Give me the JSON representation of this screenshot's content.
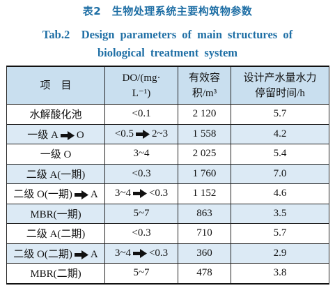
{
  "caption": {
    "cn": "表2　生物处理系统主要构筑物参数",
    "en_line1": "Tab.2　Design parameters of main structures of",
    "en_line2": "biological treatment system"
  },
  "headers": {
    "item": "项　目",
    "do_line1": "DO/(mg·",
    "do_line2": "L⁻¹)",
    "vol_line1": "有效容",
    "vol_line2": "积/m³",
    "hrt_line1": "设计产水量水力",
    "hrt_line2": "停留时间/h"
  },
  "arrow_icon": "right-arrow-icon",
  "rows": [
    {
      "name_a": "水解酸化池",
      "name_b": "",
      "do_a": "<0.1",
      "do_b": "",
      "volume": "2 120",
      "hrt": "5.7"
    },
    {
      "name_a": "一级 A",
      "name_b": "O",
      "do_a": "<0.5",
      "do_b": "2~3",
      "volume": "1 558",
      "hrt": "4.2"
    },
    {
      "name_a": "一级 O",
      "name_b": "",
      "do_a": "3~4",
      "do_b": "",
      "volume": "2 025",
      "hrt": "5.4"
    },
    {
      "name_a": "二级 A(一期)",
      "name_b": "",
      "do_a": "<0.3",
      "do_b": "",
      "volume": "1 760",
      "hrt": "7.0"
    },
    {
      "name_a": "二级 O(一期)",
      "name_b": "A",
      "do_a": "3~4",
      "do_b": "<0.3",
      "volume": "1 152",
      "hrt": "4.6"
    },
    {
      "name_a": "MBR(一期)",
      "name_b": "",
      "do_a": "5~7",
      "do_b": "",
      "volume": "863",
      "hrt": "3.5"
    },
    {
      "name_a": "二级 A(二期)",
      "name_b": "",
      "do_a": "<0.3",
      "do_b": "",
      "volume": "710",
      "hrt": "5.7"
    },
    {
      "name_a": "二级 O(二期)",
      "name_b": "A",
      "do_a": "3~4",
      "do_b": "<0.3",
      "volume": "360",
      "hrt": "2.9"
    },
    {
      "name_a": "MBR(二期)",
      "name_b": "",
      "do_a": "5~7",
      "do_b": "",
      "volume": "478",
      "hrt": "3.8"
    }
  ]
}
